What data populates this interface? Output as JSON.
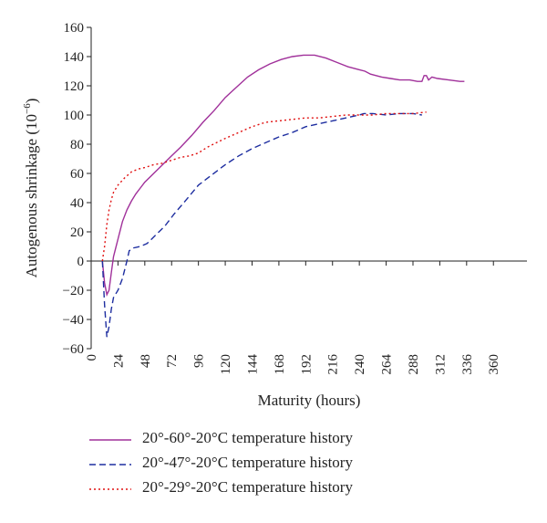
{
  "chart_data": {
    "type": "line",
    "xlabel": "Maturity (hours)",
    "ylabel": "Autogenous shrinkage (10",
    "ylabel_exp": "−6",
    "ylabel_close": ")",
    "xlim": [
      0,
      390
    ],
    "ylim": [
      -60,
      160
    ],
    "xticks": [
      0,
      24,
      48,
      72,
      96,
      120,
      144,
      168,
      192,
      216,
      240,
      264,
      288,
      312,
      336,
      360
    ],
    "yticks": [
      -60,
      -40,
      -20,
      0,
      20,
      40,
      60,
      80,
      100,
      120,
      140,
      160
    ],
    "grid": false,
    "legend_position": "bottom",
    "series": [
      {
        "name": "20°-60°-20°C temperature history",
        "color": "#a0309a",
        "dash": "solid",
        "points": [
          [
            10,
            0
          ],
          [
            12,
            -15
          ],
          [
            14,
            -23
          ],
          [
            16,
            -20
          ],
          [
            18,
            -8
          ],
          [
            20,
            3
          ],
          [
            24,
            15
          ],
          [
            28,
            27
          ],
          [
            32,
            35
          ],
          [
            36,
            41
          ],
          [
            40,
            46
          ],
          [
            44,
            50
          ],
          [
            48,
            54
          ],
          [
            56,
            60
          ],
          [
            64,
            66
          ],
          [
            72,
            72
          ],
          [
            80,
            78
          ],
          [
            90,
            86
          ],
          [
            100,
            95
          ],
          [
            110,
            103
          ],
          [
            120,
            112
          ],
          [
            130,
            119
          ],
          [
            140,
            126
          ],
          [
            150,
            131
          ],
          [
            160,
            135
          ],
          [
            170,
            138
          ],
          [
            180,
            140
          ],
          [
            190,
            141
          ],
          [
            200,
            141
          ],
          [
            210,
            139
          ],
          [
            220,
            136
          ],
          [
            230,
            133
          ],
          [
            240,
            131
          ],
          [
            245,
            130
          ],
          [
            250,
            128
          ],
          [
            255,
            127
          ],
          [
            260,
            126
          ],
          [
            268,
            125
          ],
          [
            276,
            124
          ],
          [
            285,
            124
          ],
          [
            292,
            123
          ],
          [
            296,
            123
          ],
          [
            298,
            127
          ],
          [
            300,
            127
          ],
          [
            302,
            124
          ],
          [
            305,
            126
          ],
          [
            310,
            125
          ],
          [
            320,
            124
          ],
          [
            330,
            123
          ],
          [
            334,
            123
          ]
        ]
      },
      {
        "name": "20°-47°-20°C temperature history",
        "color": "#1e2ea0",
        "dash": "dashed",
        "points": [
          [
            10,
            0
          ],
          [
            12,
            -30
          ],
          [
            14,
            -52
          ],
          [
            16,
            -45
          ],
          [
            18,
            -33
          ],
          [
            20,
            -25
          ],
          [
            24,
            -20
          ],
          [
            28,
            -12
          ],
          [
            32,
            0
          ],
          [
            34,
            7
          ],
          [
            38,
            9
          ],
          [
            44,
            10
          ],
          [
            50,
            12
          ],
          [
            58,
            18
          ],
          [
            66,
            24
          ],
          [
            74,
            32
          ],
          [
            84,
            41
          ],
          [
            96,
            52
          ],
          [
            108,
            59
          ],
          [
            120,
            66
          ],
          [
            132,
            72
          ],
          [
            144,
            77
          ],
          [
            156,
            81
          ],
          [
            168,
            85
          ],
          [
            180,
            88
          ],
          [
            192,
            92
          ],
          [
            204,
            94
          ],
          [
            216,
            96
          ],
          [
            228,
            98
          ],
          [
            240,
            100
          ],
          [
            244,
            101
          ],
          [
            252,
            101
          ],
          [
            264,
            100
          ],
          [
            276,
            101
          ],
          [
            288,
            101
          ],
          [
            296,
            100
          ]
        ]
      },
      {
        "name": "20°-29°-20°C temperature history",
        "color": "#e01010",
        "dash": "dotted",
        "points": [
          [
            10,
            0
          ],
          [
            12,
            10
          ],
          [
            14,
            25
          ],
          [
            16,
            35
          ],
          [
            18,
            42
          ],
          [
            20,
            47
          ],
          [
            24,
            52
          ],
          [
            30,
            57
          ],
          [
            36,
            61
          ],
          [
            42,
            63
          ],
          [
            48,
            64
          ],
          [
            56,
            66
          ],
          [
            64,
            67
          ],
          [
            72,
            69
          ],
          [
            80,
            71
          ],
          [
            88,
            72
          ],
          [
            96,
            74
          ],
          [
            104,
            78
          ],
          [
            112,
            81
          ],
          [
            120,
            84
          ],
          [
            132,
            88
          ],
          [
            144,
            92
          ],
          [
            156,
            95
          ],
          [
            168,
            96
          ],
          [
            180,
            97
          ],
          [
            192,
            98
          ],
          [
            204,
            98
          ],
          [
            216,
            99
          ],
          [
            228,
            100
          ],
          [
            240,
            100
          ],
          [
            252,
            100
          ],
          [
            264,
            101
          ],
          [
            276,
            101
          ],
          [
            288,
            101
          ],
          [
            300,
            102
          ]
        ]
      }
    ]
  }
}
